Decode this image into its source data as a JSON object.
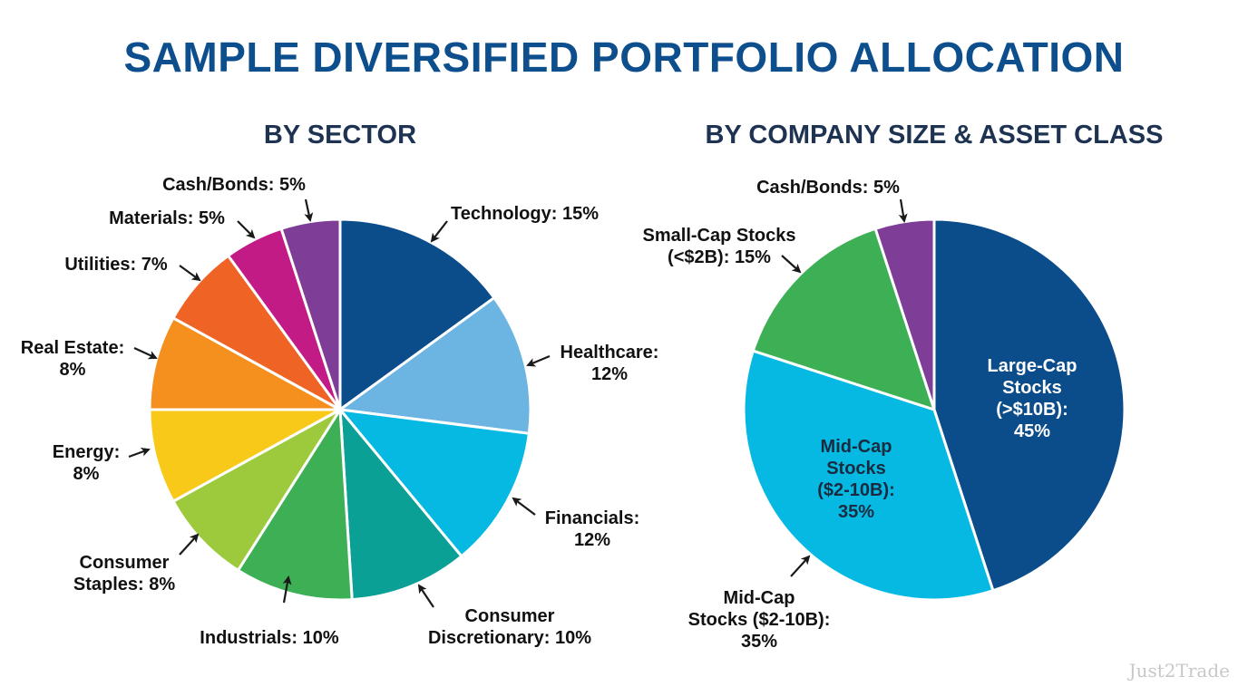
{
  "title": "SAMPLE DIVERSIFIED PORTFOLIO ALLOCATION",
  "watermark": "Just2Trade",
  "chart_data": [
    {
      "type": "pie",
      "title": "BY SECTOR",
      "unit": "%",
      "start": "12 o'clock, clockwise",
      "categories": [
        "Technology",
        "Healthcare",
        "Financials",
        "Consumer Discretionary",
        "Industrials",
        "Consumer Staples",
        "Energy",
        "Real Estate",
        "Utilities",
        "Materials",
        "Cash/Bonds"
      ],
      "values": [
        15,
        12,
        12,
        10,
        10,
        8,
        8,
        8,
        7,
        5,
        5
      ],
      "colors": [
        "#0b4c8a",
        "#6cb4e2",
        "#06b9e2",
        "#0aa096",
        "#3daf55",
        "#9dca3d",
        "#f9c919",
        "#f5901f",
        "#ef6325",
        "#c21b86",
        "#7e3d96"
      ],
      "labels": [
        [
          "Technology: 15%"
        ],
        [
          "Healthcare:",
          "12%"
        ],
        [
          "Financials:",
          "12%"
        ],
        [
          "Consumer",
          "Discretionary: 10%"
        ],
        [
          "Industrials: 10%"
        ],
        [
          "Consumer",
          "Staples: 8%"
        ],
        [
          "Energy:",
          "8%"
        ],
        [
          "Real Estate:",
          "8%"
        ],
        [
          "Utilities: 7%"
        ],
        [
          "Materials: 5%"
        ],
        [
          "Cash/Bonds: 5%"
        ]
      ]
    },
    {
      "type": "pie",
      "title": "BY COMPANY SIZE & ASSET CLASS",
      "unit": "%",
      "start": "12 o'clock, clockwise",
      "categories": [
        "Large-Cap Stocks (>$10B)",
        "Mid-Cap Stocks ($2-10B)",
        "Small-Cap Stocks (<$2B)",
        "Cash/Bonds"
      ],
      "values": [
        45,
        35,
        15,
        5
      ],
      "colors": [
        "#0b4c8a",
        "#06b9e2",
        "#3daf55",
        "#7e3d96"
      ],
      "inside_labels": [
        [
          "Large-Cap",
          "Stocks",
          "(>$10B):",
          "45%"
        ],
        [
          "Mid-Cap",
          "Stocks",
          "($2-10B):",
          "35%"
        ]
      ],
      "outside_labels": [
        [
          "Mid-Cap",
          "Stocks ($2-10B):",
          "35%"
        ],
        [
          "Small-Cap Stocks",
          "(<$2B): 15%"
        ],
        [
          "Cash/Bonds: 5%"
        ]
      ]
    }
  ]
}
